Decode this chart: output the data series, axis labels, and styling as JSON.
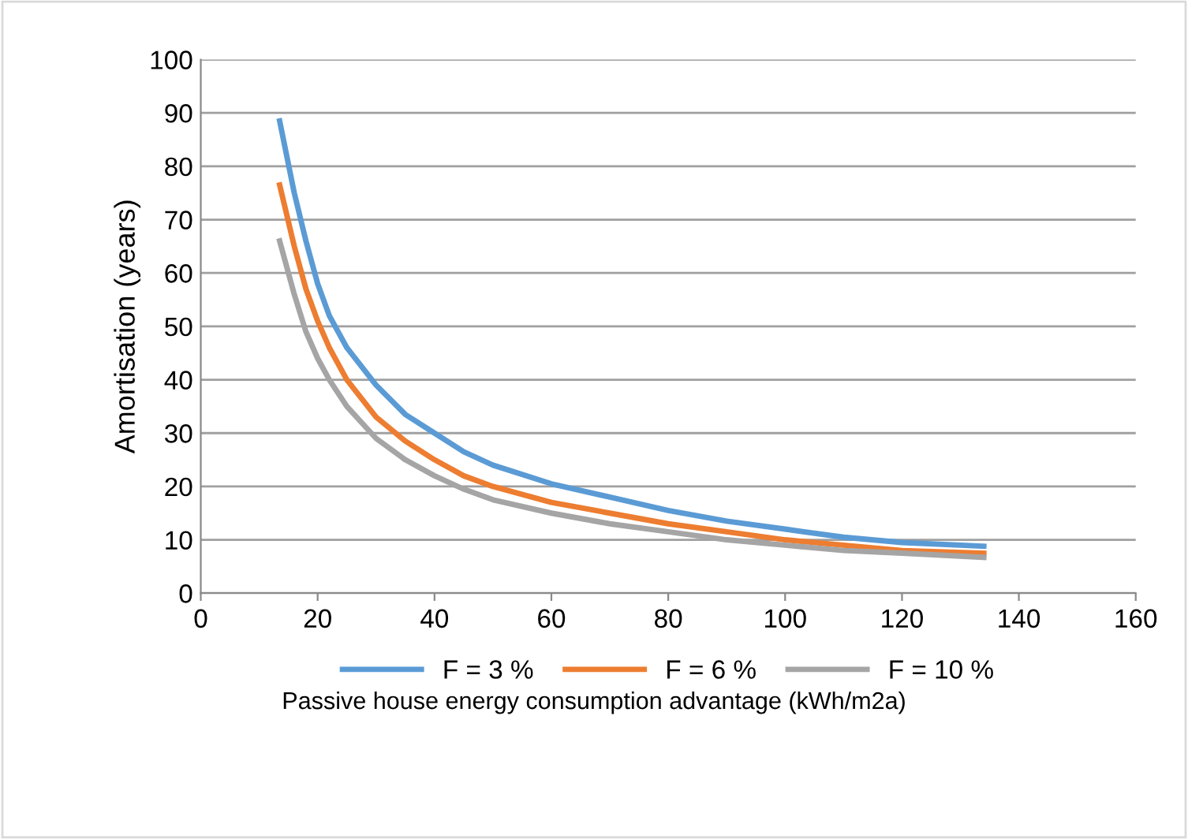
{
  "chart_data": {
    "type": "line",
    "xlabel": "Passive house energy consumption advantage (kWh/m2a)",
    "ylabel": "Amortisation (years)",
    "x": [
      13.5,
      16,
      18,
      20,
      22,
      25,
      30,
      35,
      40,
      45,
      50,
      60,
      70,
      80,
      90,
      100,
      110,
      120,
      134
    ],
    "series": [
      {
        "name": "F = 3 %",
        "color": "#5b9bd5",
        "values": [
          88.5,
          75,
          66,
          58,
          52,
          46,
          39,
          33.5,
          30,
          26.5,
          24,
          20.5,
          18,
          15.5,
          13.5,
          12,
          10.5,
          9.5,
          8.8
        ]
      },
      {
        "name": "F = 6 %",
        "color": "#ed7d31",
        "values": [
          76.5,
          65,
          57,
          51,
          46,
          40,
          33,
          28.5,
          25,
          22,
          20,
          17,
          15,
          13,
          11.5,
          10,
          9,
          8,
          7.5
        ]
      },
      {
        "name": "F = 10 %",
        "color": "#a5a5a5",
        "values": [
          66,
          56,
          49,
          44,
          40,
          35,
          29,
          25,
          22,
          19.5,
          17.5,
          15,
          13,
          11.5,
          10,
          9,
          8,
          7.5,
          6.7
        ]
      }
    ],
    "xlim": [
      0,
      160
    ],
    "xticks": [
      0,
      20,
      40,
      60,
      80,
      100,
      120,
      140,
      160
    ],
    "ylim": [
      0,
      100
    ],
    "yticks": [
      0,
      10,
      20,
      30,
      40,
      50,
      60,
      70,
      80,
      90,
      100
    ],
    "grid": "y",
    "legend": "bottom",
    "marker": "none",
    "line_style": "solid"
  }
}
